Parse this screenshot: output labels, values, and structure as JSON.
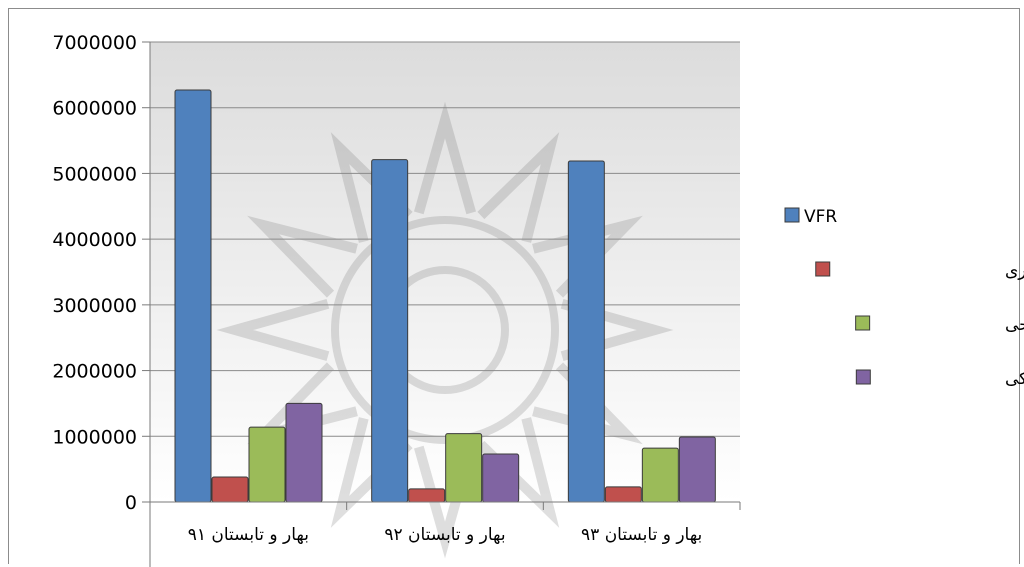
{
  "chart_data": {
    "type": "bar",
    "categories": [
      "بهار و تابستان ۹۱",
      "بهار و تابستان ۹۲",
      "بهار و تابستان ۹۳"
    ],
    "series": [
      {
        "name": "VFR",
        "color": "#4f81bd",
        "values": [
          6270000,
          5210000,
          5190000
        ]
      },
      {
        "name": "گردشگری تجاری- اداری",
        "color": "#c0504d",
        "values": [
          380000,
          200000,
          230000
        ]
      },
      {
        "name": "گردشگری تفریحی",
        "color": "#9bbb59",
        "values": [
          1140000,
          1040000,
          820000
        ]
      },
      {
        "name": "گردشگری پزشکی",
        "color": "#8064a2",
        "values": [
          1500000,
          730000,
          990000
        ]
      }
    ],
    "ylim": [
      0,
      7000000
    ],
    "yticks": [
      "0",
      "1000000",
      "2000000",
      "3000000",
      "4000000",
      "5000000",
      "6000000",
      "7000000"
    ],
    "grid": true,
    "legend_position": "right"
  }
}
